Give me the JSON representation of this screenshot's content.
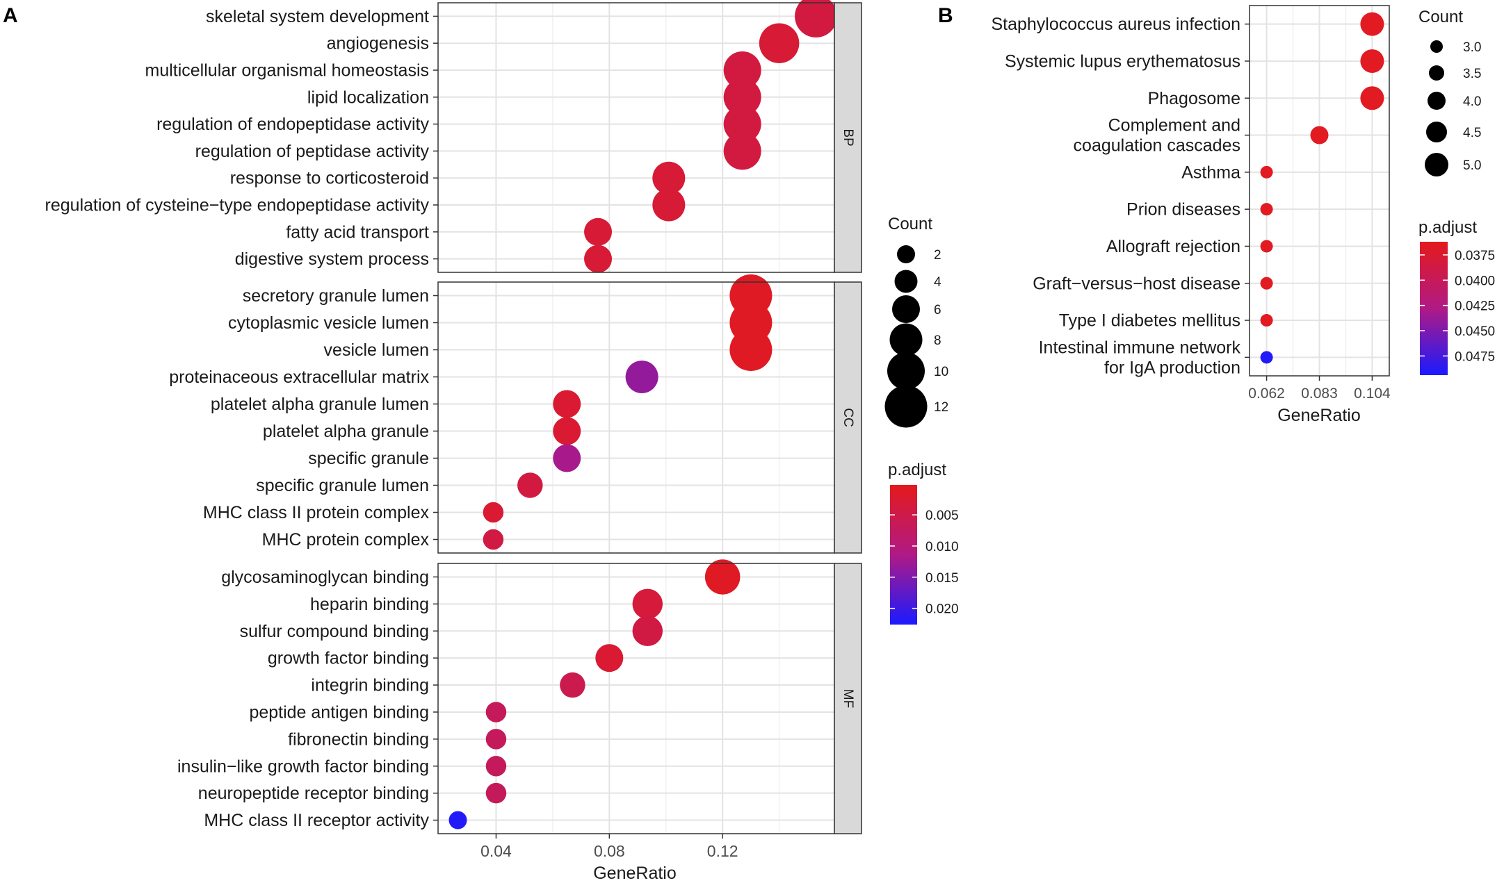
{
  "chart_data": [
    {
      "panel_label": "A",
      "type": "scatter",
      "xlabel": "GeneRatio",
      "xlim": [
        0.0195,
        0.1595
      ],
      "xticks": [
        0.04,
        0.08,
        0.12
      ],
      "xtick_labels": [
        "0.04",
        "0.08",
        "0.12"
      ],
      "size_legend": {
        "title": "Count",
        "values": [
          2,
          4,
          6,
          8,
          10,
          12
        ],
        "labels": [
          "2",
          "4",
          "6",
          "8",
          "10",
          "12"
        ]
      },
      "color_legend": {
        "title": "p.adjust",
        "range": [
          0.0002,
          0.0226
        ],
        "ticks": [
          0.005,
          0.01,
          0.015,
          0.02
        ],
        "tick_labels": [
          "0.005",
          "0.010",
          "0.015",
          "0.020"
        ],
        "low_color": "#e41a1c",
        "high_color": "#1a1aff"
      },
      "facets": [
        {
          "label": "BP",
          "terms": [
            {
              "term": "skeletal system development",
              "x": 0.153,
              "count": 12,
              "p": 0.004
            },
            {
              "term": "angiogenesis",
              "x": 0.14,
              "count": 11,
              "p": 0.003
            },
            {
              "term": "multicellular organismal homeostasis",
              "x": 0.127,
              "count": 10,
              "p": 0.004
            },
            {
              "term": "lipid localization",
              "x": 0.127,
              "count": 10,
              "p": 0.004
            },
            {
              "term": "regulation of endopeptidase activity",
              "x": 0.127,
              "count": 10,
              "p": 0.004
            },
            {
              "term": "regulation of peptidase activity",
              "x": 0.127,
              "count": 10,
              "p": 0.004
            },
            {
              "term": "response to corticosteroid",
              "x": 0.101,
              "count": 8,
              "p": 0.003
            },
            {
              "term": "regulation of cysteine−type endopeptidase activity",
              "x": 0.101,
              "count": 8,
              "p": 0.003
            },
            {
              "term": "fatty acid transport",
              "x": 0.076,
              "count": 6,
              "p": 0.003
            },
            {
              "term": "digestive system process",
              "x": 0.076,
              "count": 6,
              "p": 0.003
            }
          ]
        },
        {
          "label": "CC",
          "terms": [
            {
              "term": "secretory granule lumen",
              "x": 0.13,
              "count": 12,
              "p": 0.001
            },
            {
              "term": "cytoplasmic vesicle lumen",
              "x": 0.13,
              "count": 12,
              "p": 0.001
            },
            {
              "term": "vesicle lumen",
              "x": 0.13,
              "count": 12,
              "p": 0.001
            },
            {
              "term": "proteinaceous extracellular matrix",
              "x": 0.0915,
              "count": 8,
              "p": 0.0135
            },
            {
              "term": "platelet alpha granule lumen",
              "x": 0.065,
              "count": 6,
              "p": 0.0025
            },
            {
              "term": "platelet alpha granule",
              "x": 0.065,
              "count": 6,
              "p": 0.0025
            },
            {
              "term": "specific granule",
              "x": 0.065,
              "count": 6,
              "p": 0.012
            },
            {
              "term": "specific granule lumen",
              "x": 0.052,
              "count": 5,
              "p": 0.004
            },
            {
              "term": "MHC class II protein complex",
              "x": 0.039,
              "count": 3,
              "p": 0.0025
            },
            {
              "term": "MHC protein complex",
              "x": 0.039,
              "count": 3,
              "p": 0.0045
            }
          ]
        },
        {
          "label": "MF",
          "terms": [
            {
              "term": "glycosaminoglycan binding",
              "x": 0.12,
              "count": 9,
              "p": 0.001
            },
            {
              "term": "heparin binding",
              "x": 0.0935,
              "count": 7,
              "p": 0.0035
            },
            {
              "term": "sulfur compound binding",
              "x": 0.0935,
              "count": 7,
              "p": 0.0045
            },
            {
              "term": "growth factor binding",
              "x": 0.08,
              "count": 6,
              "p": 0.0025
            },
            {
              "term": "integrin binding",
              "x": 0.067,
              "count": 5,
              "p": 0.0055
            },
            {
              "term": "peptide antigen binding",
              "x": 0.04,
              "count": 3,
              "p": 0.007
            },
            {
              "term": "fibronectin binding",
              "x": 0.04,
              "count": 3,
              "p": 0.007
            },
            {
              "term": "insulin−like growth factor binding",
              "x": 0.04,
              "count": 3,
              "p": 0.007
            },
            {
              "term": "neuropeptide receptor binding",
              "x": 0.04,
              "count": 3,
              "p": 0.007
            },
            {
              "term": "MHC class II receptor activity",
              "x": 0.0265,
              "count": 2,
              "p": 0.022
            }
          ]
        }
      ]
    },
    {
      "panel_label": "B",
      "type": "scatter",
      "xlabel": "GeneRatio",
      "xlim": [
        0.0552,
        0.1108
      ],
      "xticks": [
        0.062,
        0.083,
        0.104
      ],
      "xtick_labels": [
        "0.062",
        "0.083",
        "0.104"
      ],
      "size_legend": {
        "title": "Count",
        "values": [
          3.0,
          3.5,
          4.0,
          4.5,
          5.0
        ],
        "labels": [
          "3.0",
          "3.5",
          "4.0",
          "4.5",
          "5.0"
        ]
      },
      "color_legend": {
        "title": "p.adjust",
        "range": [
          0.0362,
          0.0494
        ],
        "ticks": [
          0.0375,
          0.04,
          0.0425,
          0.045,
          0.0475
        ],
        "tick_labels": [
          "0.0375",
          "0.0400",
          "0.0425",
          "0.0450",
          "0.0475"
        ],
        "low_color": "#e41a1c",
        "high_color": "#1a1aff"
      },
      "terms": [
        {
          "term": [
            "Staphylococcus aureus infection"
          ],
          "x": 0.104,
          "count": 5,
          "p": 0.0365
        },
        {
          "term": [
            "Systemic lupus erythematosus"
          ],
          "x": 0.104,
          "count": 5,
          "p": 0.0365
        },
        {
          "term": [
            "Phagosome"
          ],
          "x": 0.104,
          "count": 5,
          "p": 0.0365
        },
        {
          "term": [
            "Complement and",
            "coagulation cascades"
          ],
          "x": 0.083,
          "count": 4,
          "p": 0.0365
        },
        {
          "term": [
            "Asthma"
          ],
          "x": 0.062,
          "count": 3,
          "p": 0.0365
        },
        {
          "term": [
            "Prion diseases"
          ],
          "x": 0.062,
          "count": 3,
          "p": 0.0365
        },
        {
          "term": [
            "Allograft rejection"
          ],
          "x": 0.062,
          "count": 3,
          "p": 0.0365
        },
        {
          "term": [
            "Graft−versus−host disease"
          ],
          "x": 0.062,
          "count": 3,
          "p": 0.0365
        },
        {
          "term": [
            "Type I diabetes mellitus"
          ],
          "x": 0.062,
          "count": 3,
          "p": 0.0365
        },
        {
          "term": [
            "Intestinal immune network",
            "for IgA production"
          ],
          "x": 0.062,
          "count": 3,
          "p": 0.049
        }
      ]
    }
  ]
}
